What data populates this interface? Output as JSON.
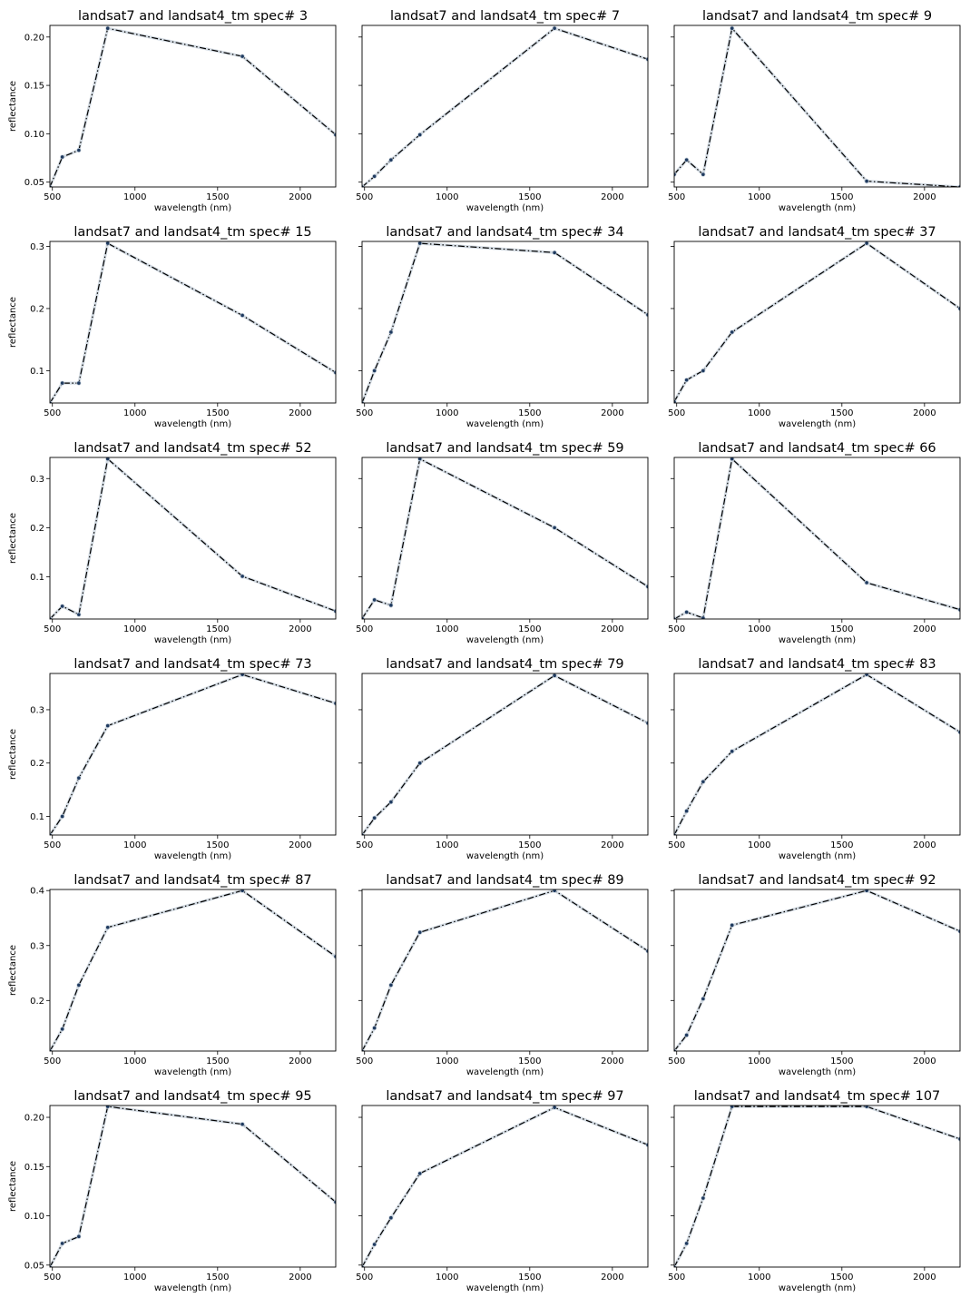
{
  "figure": {
    "background": "#ffffff"
  },
  "style": {
    "line_color": "#000000",
    "marker_color": "#1f3a5f",
    "halo_color": "#c9d3dd"
  },
  "chart_data": [
    {
      "type": "line",
      "title": "landsat7 and landsat4_tm spec# 3",
      "xlabel": "wavelength (nm)",
      "ylabel": "reflectance",
      "xlim": [
        485,
        2215
      ],
      "ylim": [
        0.045,
        0.212
      ],
      "x": [
        485,
        560,
        660,
        835,
        1650,
        2215
      ],
      "y": [
        0.045,
        0.076,
        0.083,
        0.209,
        0.18,
        0.099
      ],
      "xticks": [
        500,
        1000,
        1500,
        2000
      ],
      "xtick_labels": [
        "500",
        "1000",
        "1500",
        "2000"
      ],
      "yticks": [
        0.05,
        0.1,
        0.15,
        0.2
      ],
      "ytick_labels": [
        "0.05",
        "0.10",
        "0.15",
        "0.20"
      ]
    },
    {
      "type": "line",
      "title": "landsat7 and landsat4_tm spec# 7",
      "xlabel": "wavelength (nm)",
      "ylabel": "",
      "xlim": [
        485,
        2215
      ],
      "ylim": [
        0.045,
        0.212
      ],
      "x": [
        485,
        560,
        660,
        835,
        1650,
        2215
      ],
      "y": [
        0.045,
        0.056,
        0.073,
        0.099,
        0.209,
        0.177
      ],
      "xticks": [
        500,
        1000,
        1500,
        2000
      ],
      "xtick_labels": [
        "500",
        "1000",
        "1500",
        "2000"
      ],
      "yticks": [
        0.05,
        0.1,
        0.15,
        0.2
      ],
      "ytick_labels": [
        "",
        "",
        "",
        ""
      ]
    },
    {
      "type": "line",
      "title": "landsat7 and landsat4_tm spec# 9",
      "xlabel": "wavelength (nm)",
      "ylabel": "",
      "xlim": [
        485,
        2215
      ],
      "ylim": [
        0.045,
        0.212
      ],
      "x": [
        485,
        560,
        660,
        835,
        1650,
        2215
      ],
      "y": [
        0.058,
        0.073,
        0.058,
        0.209,
        0.051,
        0.045
      ],
      "xticks": [
        500,
        1000,
        1500,
        2000
      ],
      "xtick_labels": [
        "500",
        "1000",
        "1500",
        "2000"
      ],
      "yticks": [
        0.05,
        0.1,
        0.15,
        0.2
      ],
      "ytick_labels": [
        "",
        "",
        "",
        ""
      ]
    },
    {
      "type": "line",
      "title": "landsat7 and landsat4_tm spec# 15",
      "xlabel": "wavelength (nm)",
      "ylabel": "reflectance",
      "xlim": [
        485,
        2215
      ],
      "ylim": [
        0.048,
        0.308
      ],
      "x": [
        485,
        560,
        660,
        835,
        1650,
        2215
      ],
      "y": [
        0.048,
        0.08,
        0.08,
        0.305,
        0.189,
        0.097
      ],
      "xticks": [
        500,
        1000,
        1500,
        2000
      ],
      "xtick_labels": [
        "500",
        "1000",
        "1500",
        "2000"
      ],
      "yticks": [
        0.1,
        0.2,
        0.3
      ],
      "ytick_labels": [
        "0.1",
        "0.2",
        "0.3"
      ]
    },
    {
      "type": "line",
      "title": "landsat7 and landsat4_tm spec# 34",
      "xlabel": "wavelength (nm)",
      "ylabel": "",
      "xlim": [
        485,
        2215
      ],
      "ylim": [
        0.048,
        0.308
      ],
      "x": [
        485,
        560,
        660,
        835,
        1650,
        2215
      ],
      "y": [
        0.048,
        0.1,
        0.162,
        0.305,
        0.29,
        0.19
      ],
      "xticks": [
        500,
        1000,
        1500,
        2000
      ],
      "xtick_labels": [
        "500",
        "1000",
        "1500",
        "2000"
      ],
      "yticks": [
        0.1,
        0.2,
        0.3
      ],
      "ytick_labels": [
        "",
        "",
        ""
      ]
    },
    {
      "type": "line",
      "title": "landsat7 and landsat4_tm spec# 37",
      "xlabel": "wavelength (nm)",
      "ylabel": "",
      "xlim": [
        485,
        2215
      ],
      "ylim": [
        0.048,
        0.308
      ],
      "x": [
        485,
        560,
        660,
        835,
        1650,
        2215
      ],
      "y": [
        0.05,
        0.085,
        0.1,
        0.162,
        0.305,
        0.2
      ],
      "xticks": [
        500,
        1000,
        1500,
        2000
      ],
      "xtick_labels": [
        "500",
        "1000",
        "1500",
        "2000"
      ],
      "yticks": [
        0.1,
        0.2,
        0.3
      ],
      "ytick_labels": [
        "",
        "",
        ""
      ]
    },
    {
      "type": "line",
      "title": "landsat7 and landsat4_tm spec# 52",
      "xlabel": "wavelength (nm)",
      "ylabel": "reflectance",
      "xlim": [
        485,
        2215
      ],
      "ylim": [
        0.014,
        0.343
      ],
      "x": [
        485,
        560,
        660,
        835,
        1650,
        2215
      ],
      "y": [
        0.014,
        0.04,
        0.023,
        0.34,
        0.101,
        0.03
      ],
      "xticks": [
        500,
        1000,
        1500,
        2000
      ],
      "xtick_labels": [
        "500",
        "1000",
        "1500",
        "2000"
      ],
      "yticks": [
        0.1,
        0.2,
        0.3
      ],
      "ytick_labels": [
        "0.1",
        "0.2",
        "0.3"
      ]
    },
    {
      "type": "line",
      "title": "landsat7 and landsat4_tm spec# 59",
      "xlabel": "wavelength (nm)",
      "ylabel": "",
      "xlim": [
        485,
        2215
      ],
      "ylim": [
        0.014,
        0.343
      ],
      "x": [
        485,
        560,
        660,
        835,
        1650,
        2215
      ],
      "y": [
        0.015,
        0.053,
        0.042,
        0.34,
        0.2,
        0.08
      ],
      "xticks": [
        500,
        1000,
        1500,
        2000
      ],
      "xtick_labels": [
        "500",
        "1000",
        "1500",
        "2000"
      ],
      "yticks": [
        0.1,
        0.2,
        0.3
      ],
      "ytick_labels": [
        "",
        "",
        ""
      ]
    },
    {
      "type": "line",
      "title": "landsat7 and landsat4_tm spec# 66",
      "xlabel": "wavelength (nm)",
      "ylabel": "",
      "xlim": [
        485,
        2215
      ],
      "ylim": [
        0.014,
        0.343
      ],
      "x": [
        485,
        560,
        660,
        835,
        1650,
        2215
      ],
      "y": [
        0.014,
        0.028,
        0.016,
        0.34,
        0.088,
        0.033
      ],
      "xticks": [
        500,
        1000,
        1500,
        2000
      ],
      "xtick_labels": [
        "500",
        "1000",
        "1500",
        "2000"
      ],
      "yticks": [
        0.1,
        0.2,
        0.3
      ],
      "ytick_labels": [
        "",
        "",
        ""
      ]
    },
    {
      "type": "line",
      "title": "landsat7 and landsat4_tm spec# 73",
      "xlabel": "wavelength (nm)",
      "ylabel": "reflectance",
      "xlim": [
        485,
        2215
      ],
      "ylim": [
        0.065,
        0.368
      ],
      "x": [
        485,
        560,
        660,
        835,
        1650,
        2215
      ],
      "y": [
        0.065,
        0.1,
        0.172,
        0.27,
        0.366,
        0.312
      ],
      "xticks": [
        500,
        1000,
        1500,
        2000
      ],
      "xtick_labels": [
        "500",
        "1000",
        "1500",
        "2000"
      ],
      "yticks": [
        0.1,
        0.2,
        0.3
      ],
      "ytick_labels": [
        "0.1",
        "0.2",
        "0.3"
      ]
    },
    {
      "type": "line",
      "title": "landsat7 and landsat4_tm spec# 79",
      "xlabel": "wavelength (nm)",
      "ylabel": "",
      "xlim": [
        485,
        2215
      ],
      "ylim": [
        0.065,
        0.368
      ],
      "x": [
        485,
        560,
        660,
        835,
        1650,
        2215
      ],
      "y": [
        0.065,
        0.097,
        0.127,
        0.2,
        0.364,
        0.275
      ],
      "xticks": [
        500,
        1000,
        1500,
        2000
      ],
      "xtick_labels": [
        "500",
        "1000",
        "1500",
        "2000"
      ],
      "yticks": [
        0.1,
        0.2,
        0.3
      ],
      "ytick_labels": [
        "",
        "",
        ""
      ]
    },
    {
      "type": "line",
      "title": "landsat7 and landsat4_tm spec# 83",
      "xlabel": "wavelength (nm)",
      "ylabel": "",
      "xlim": [
        485,
        2215
      ],
      "ylim": [
        0.065,
        0.368
      ],
      "x": [
        485,
        560,
        660,
        835,
        1650,
        2215
      ],
      "y": [
        0.065,
        0.11,
        0.165,
        0.222,
        0.366,
        0.258
      ],
      "xticks": [
        500,
        1000,
        1500,
        2000
      ],
      "xtick_labels": [
        "500",
        "1000",
        "1500",
        "2000"
      ],
      "yticks": [
        0.1,
        0.2,
        0.3
      ],
      "ytick_labels": [
        "",
        "",
        ""
      ]
    },
    {
      "type": "line",
      "title": "landsat7 and landsat4_tm spec# 87",
      "xlabel": "wavelength (nm)",
      "ylabel": "reflectance",
      "xlim": [
        485,
        2215
      ],
      "ylim": [
        0.108,
        0.402
      ],
      "x": [
        485,
        560,
        660,
        835,
        1650,
        2215
      ],
      "y": [
        0.108,
        0.148,
        0.228,
        0.333,
        0.4,
        0.28
      ],
      "xticks": [
        500,
        1000,
        1500,
        2000
      ],
      "xtick_labels": [
        "500",
        "1000",
        "1500",
        "2000"
      ],
      "yticks": [
        0.2,
        0.3,
        0.4
      ],
      "ytick_labels": [
        "0.2",
        "0.3",
        "0.4"
      ]
    },
    {
      "type": "line",
      "title": "landsat7 and landsat4_tm spec# 89",
      "xlabel": "wavelength (nm)",
      "ylabel": "",
      "xlim": [
        485,
        2215
      ],
      "ylim": [
        0.108,
        0.402
      ],
      "x": [
        485,
        560,
        660,
        835,
        1650,
        2215
      ],
      "y": [
        0.108,
        0.15,
        0.228,
        0.324,
        0.4,
        0.29
      ],
      "xticks": [
        500,
        1000,
        1500,
        2000
      ],
      "xtick_labels": [
        "500",
        "1000",
        "1500",
        "2000"
      ],
      "yticks": [
        0.2,
        0.3,
        0.4
      ],
      "ytick_labels": [
        "",
        "",
        ""
      ]
    },
    {
      "type": "line",
      "title": "landsat7 and landsat4_tm spec# 92",
      "xlabel": "wavelength (nm)",
      "ylabel": "",
      "xlim": [
        485,
        2215
      ],
      "ylim": [
        0.108,
        0.402
      ],
      "x": [
        485,
        560,
        660,
        835,
        1650,
        2215
      ],
      "y": [
        0.108,
        0.137,
        0.203,
        0.337,
        0.4,
        0.326
      ],
      "xticks": [
        500,
        1000,
        1500,
        2000
      ],
      "xtick_labels": [
        "500",
        "1000",
        "1500",
        "2000"
      ],
      "yticks": [
        0.2,
        0.3,
        0.4
      ],
      "ytick_labels": [
        "",
        "",
        ""
      ]
    },
    {
      "type": "line",
      "title": "landsat7 and landsat4_tm spec# 95",
      "xlabel": "wavelength (nm)",
      "ylabel": "reflectance",
      "xlim": [
        485,
        2215
      ],
      "ylim": [
        0.048,
        0.212
      ],
      "x": [
        485,
        560,
        660,
        835,
        1650,
        2215
      ],
      "y": [
        0.048,
        0.072,
        0.079,
        0.211,
        0.193,
        0.114
      ],
      "xticks": [
        500,
        1000,
        1500,
        2000
      ],
      "xtick_labels": [
        "500",
        "1000",
        "1500",
        "2000"
      ],
      "yticks": [
        0.05,
        0.1,
        0.15,
        0.2
      ],
      "ytick_labels": [
        "0.05",
        "0.10",
        "0.15",
        "0.20"
      ]
    },
    {
      "type": "line",
      "title": "landsat7 and landsat4_tm spec# 97",
      "xlabel": "wavelength (nm)",
      "ylabel": "",
      "xlim": [
        485,
        2215
      ],
      "ylim": [
        0.048,
        0.212
      ],
      "x": [
        485,
        560,
        660,
        835,
        1650,
        2215
      ],
      "y": [
        0.048,
        0.071,
        0.098,
        0.143,
        0.21,
        0.172
      ],
      "xticks": [
        500,
        1000,
        1500,
        2000
      ],
      "xtick_labels": [
        "500",
        "1000",
        "1500",
        "2000"
      ],
      "yticks": [
        0.05,
        0.1,
        0.15,
        0.2
      ],
      "ytick_labels": [
        "",
        "",
        "",
        ""
      ]
    },
    {
      "type": "line",
      "title": "landsat7 and landsat4_tm spec# 107",
      "xlabel": "wavelength (nm)",
      "ylabel": "",
      "xlim": [
        485,
        2215
      ],
      "ylim": [
        0.048,
        0.212
      ],
      "x": [
        485,
        560,
        660,
        835,
        1650,
        2215
      ],
      "y": [
        0.048,
        0.072,
        0.118,
        0.211,
        0.211,
        0.178
      ],
      "xticks": [
        500,
        1000,
        1500,
        2000
      ],
      "xtick_labels": [
        "500",
        "1000",
        "1500",
        "2000"
      ],
      "yticks": [
        0.05,
        0.1,
        0.15,
        0.2
      ],
      "ytick_labels": [
        "",
        "",
        "",
        ""
      ]
    }
  ]
}
